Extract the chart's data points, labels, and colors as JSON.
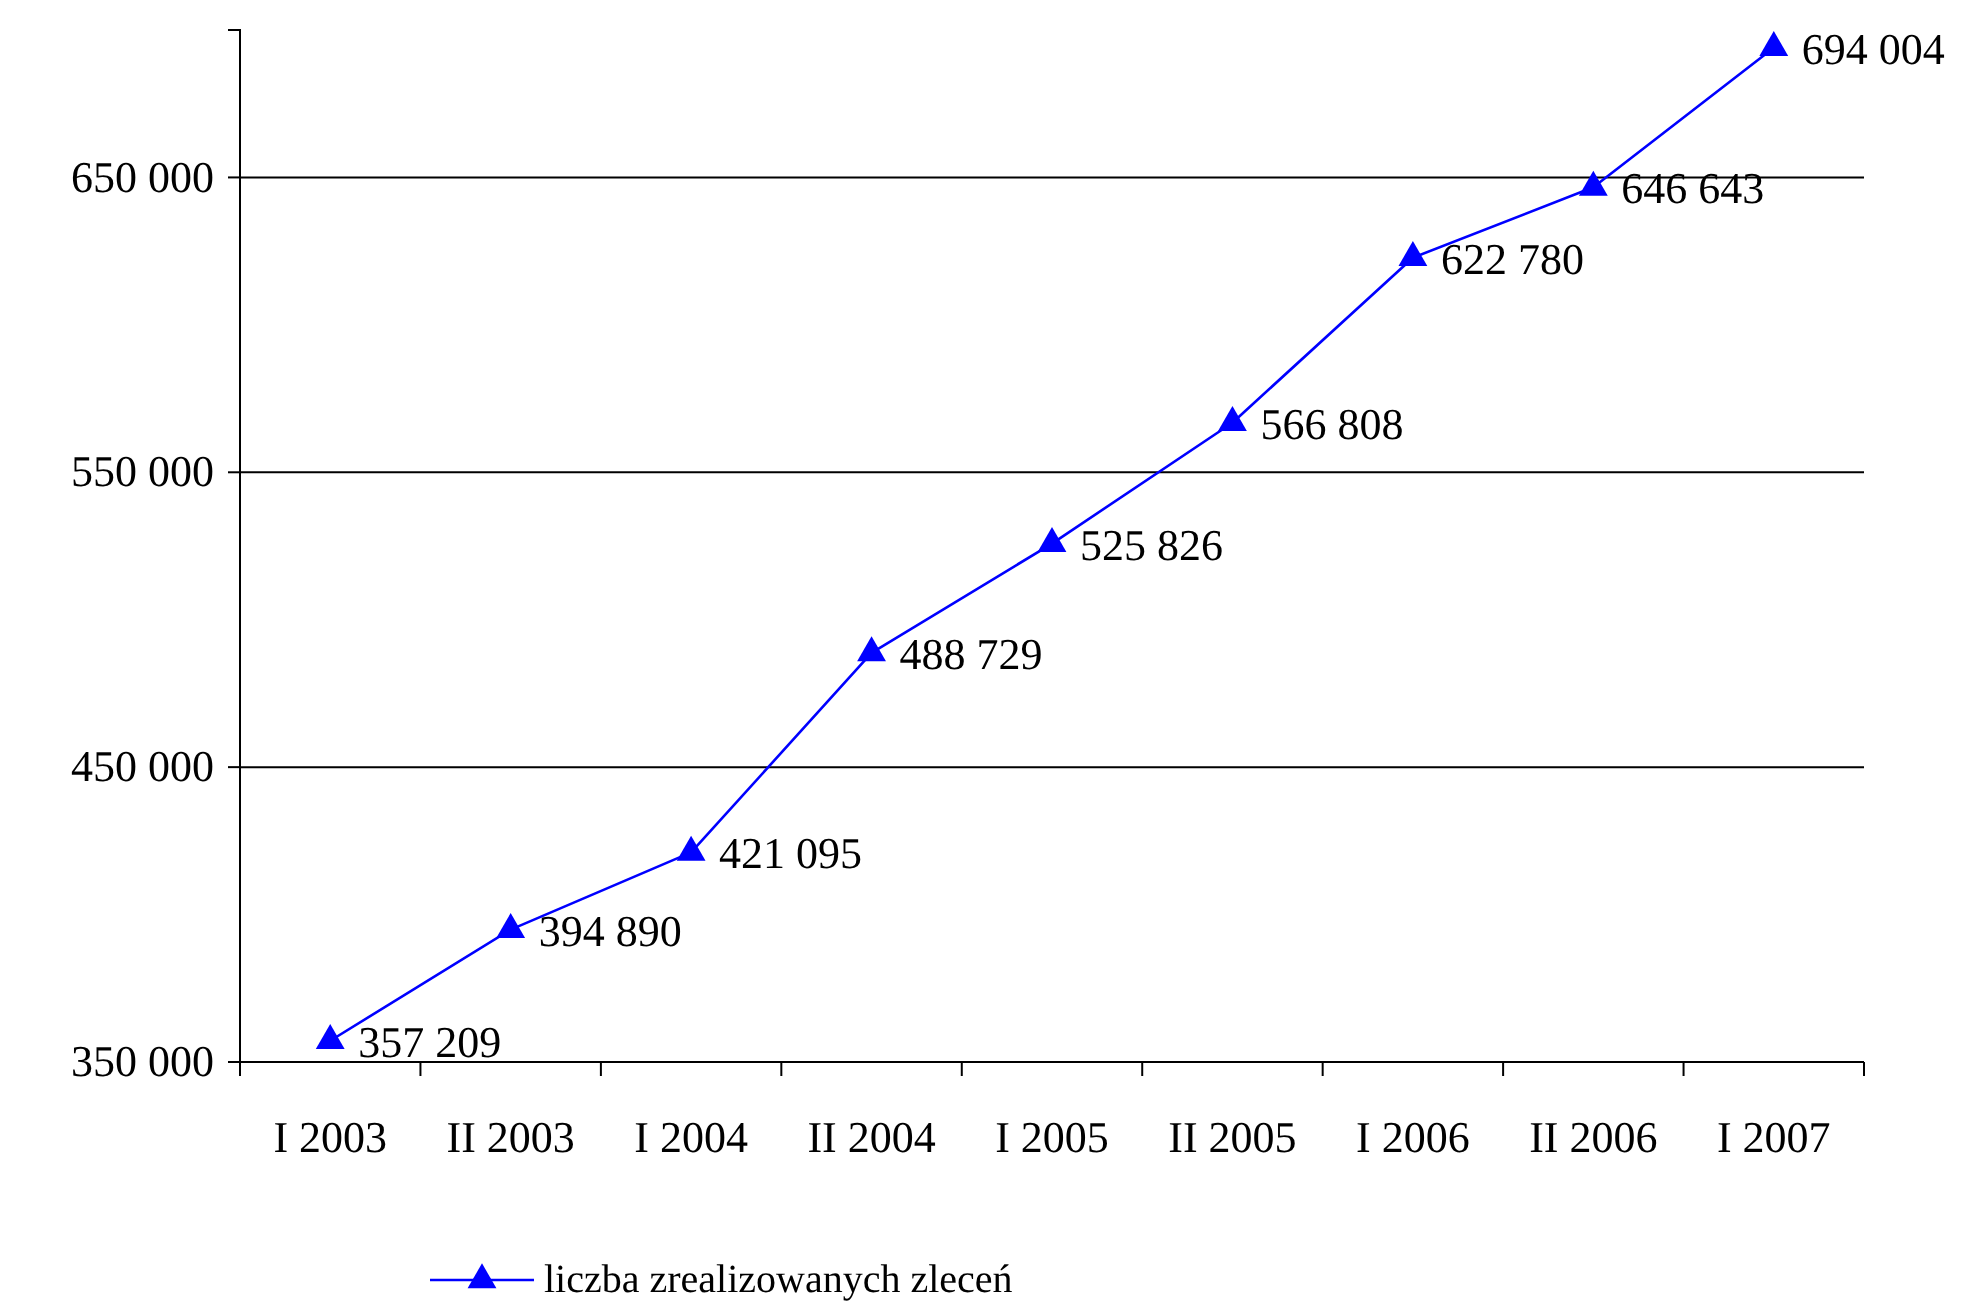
{
  "chart_data": {
    "type": "line",
    "categories": [
      "I 2003",
      "II 2003",
      "I 2004",
      "II 2004",
      "I 2005",
      "II 2005",
      "I 2006",
      "II 2006",
      "I 2007"
    ],
    "series": [
      {
        "name": "liczba zrealizowanych zleceń",
        "color": "#0000ff",
        "values": [
          357209,
          394890,
          421095,
          488729,
          525826,
          566808,
          622780,
          646643,
          694004
        ],
        "value_labels": [
          "357 209",
          "394 890",
          "421 095",
          "488 729",
          "525 826",
          "566 808",
          "622 780",
          "646 643",
          "694 004"
        ]
      }
    ],
    "ylim": [
      350000,
      700000
    ],
    "yticks": [
      {
        "value": 350000,
        "label": "350 000"
      },
      {
        "value": 450000,
        "label": "450 000"
      },
      {
        "value": 550000,
        "label": "550 000"
      },
      {
        "value": 650000,
        "label": "650 000"
      }
    ],
    "grid": "y",
    "legend": "bottom",
    "marker": "triangle",
    "line_style": "solid"
  }
}
